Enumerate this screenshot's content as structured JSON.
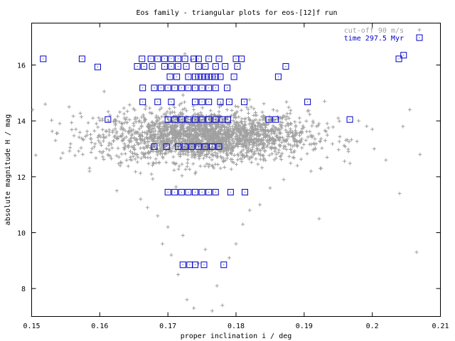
{
  "chart_data": {
    "type": "scatter",
    "title": "Eos family - triangular plots for eos-[12]f run",
    "xlabel": "proper inclination i / deg",
    "ylabel": "absolute magnitude H / mag",
    "xlim": [
      0.15,
      0.21
    ],
    "ylim": [
      7,
      17.5
    ],
    "x_ticks": [
      "0.15",
      "0.16",
      "0.17",
      "0.18",
      "0.19",
      "0.2",
      "0.21"
    ],
    "y_ticks": [
      "8",
      "10",
      "12",
      "14",
      "16"
    ],
    "grid": false,
    "legend_position": "top-right",
    "colors": {
      "cutoff": "#a0a0a0",
      "time": "#0000c8"
    },
    "series": [
      {
        "name": "cut-off 90 m/s",
        "marker": "plus",
        "cloud": {
          "count": 2200,
          "center_x": 0.1755,
          "sigma_x": 0.0075,
          "center_y": 13.45,
          "sigma_y": 0.45
        },
        "points": [
          {
            "x": 0.1535,
            "y": 13.3
          },
          {
            "x": 0.1555,
            "y": 14.5
          },
          {
            "x": 0.1565,
            "y": 13.7
          },
          {
            "x": 0.1575,
            "y": 12.8
          },
          {
            "x": 0.1585,
            "y": 12.2
          },
          {
            "x": 0.159,
            "y": 14.1
          },
          {
            "x": 0.1595,
            "y": 13.9
          },
          {
            "x": 0.16,
            "y": 12.9
          },
          {
            "x": 0.1615,
            "y": 14.2
          },
          {
            "x": 0.1625,
            "y": 11.5
          },
          {
            "x": 0.163,
            "y": 12.4
          },
          {
            "x": 0.1645,
            "y": 12.7
          },
          {
            "x": 0.166,
            "y": 11.2
          },
          {
            "x": 0.167,
            "y": 10.9
          },
          {
            "x": 0.1685,
            "y": 10.6
          },
          {
            "x": 0.1692,
            "y": 9.6
          },
          {
            "x": 0.17,
            "y": 10.2
          },
          {
            "x": 0.1705,
            "y": 9.2
          },
          {
            "x": 0.1715,
            "y": 8.5
          },
          {
            "x": 0.1722,
            "y": 9.9
          },
          {
            "x": 0.1728,
            "y": 7.6
          },
          {
            "x": 0.1738,
            "y": 7.3
          },
          {
            "x": 0.1745,
            "y": 8.9
          },
          {
            "x": 0.1755,
            "y": 9.4
          },
          {
            "x": 0.1765,
            "y": 7.2
          },
          {
            "x": 0.1772,
            "y": 8.1
          },
          {
            "x": 0.178,
            "y": 7.4
          },
          {
            "x": 0.179,
            "y": 9.1
          },
          {
            "x": 0.18,
            "y": 9.6
          },
          {
            "x": 0.181,
            "y": 10.3
          },
          {
            "x": 0.182,
            "y": 10.8
          },
          {
            "x": 0.1835,
            "y": 11.0
          },
          {
            "x": 0.185,
            "y": 11.6
          },
          {
            "x": 0.187,
            "y": 11.9
          },
          {
            "x": 0.189,
            "y": 12.4
          },
          {
            "x": 0.191,
            "y": 12.2
          },
          {
            "x": 0.1922,
            "y": 10.5
          },
          {
            "x": 0.193,
            "y": 14.7
          },
          {
            "x": 0.195,
            "y": 14.1
          },
          {
            "x": 0.1965,
            "y": 12.9
          },
          {
            "x": 0.198,
            "y": 14.0
          },
          {
            "x": 0.2,
            "y": 13.7
          },
          {
            "x": 0.202,
            "y": 12.6
          },
          {
            "x": 0.204,
            "y": 11.4
          },
          {
            "x": 0.2055,
            "y": 14.4
          },
          {
            "x": 0.2065,
            "y": 9.3
          },
          {
            "x": 0.207,
            "y": 12.8
          },
          {
            "x": 0.1725,
            "y": 16.4
          },
          {
            "x": 0.1735,
            "y": 16.2
          },
          {
            "x": 0.152,
            "y": 14.6
          },
          {
            "x": 0.2045,
            "y": 13.8
          }
        ]
      },
      {
        "name": "time 297.5 Myr",
        "marker": "square",
        "points": [
          {
            "x": 0.1517,
            "y": 16.22
          },
          {
            "x": 0.1574,
            "y": 16.22
          },
          {
            "x": 0.1597,
            "y": 15.93
          },
          {
            "x": 0.1662,
            "y": 16.22
          },
          {
            "x": 0.1675,
            "y": 16.22
          },
          {
            "x": 0.1685,
            "y": 16.22
          },
          {
            "x": 0.1695,
            "y": 16.22
          },
          {
            "x": 0.1705,
            "y": 16.22
          },
          {
            "x": 0.1715,
            "y": 16.22
          },
          {
            "x": 0.1725,
            "y": 16.22
          },
          {
            "x": 0.1738,
            "y": 16.22
          },
          {
            "x": 0.1745,
            "y": 16.22
          },
          {
            "x": 0.176,
            "y": 16.22
          },
          {
            "x": 0.1775,
            "y": 16.22
          },
          {
            "x": 0.18,
            "y": 16.22
          },
          {
            "x": 0.1808,
            "y": 16.22
          },
          {
            "x": 0.2039,
            "y": 16.22
          },
          {
            "x": 0.1655,
            "y": 15.95
          },
          {
            "x": 0.1665,
            "y": 15.95
          },
          {
            "x": 0.1677,
            "y": 15.95
          },
          {
            "x": 0.1695,
            "y": 15.95
          },
          {
            "x": 0.1705,
            "y": 15.95
          },
          {
            "x": 0.1715,
            "y": 15.95
          },
          {
            "x": 0.1727,
            "y": 15.95
          },
          {
            "x": 0.1745,
            "y": 15.95
          },
          {
            "x": 0.1755,
            "y": 15.95
          },
          {
            "x": 0.177,
            "y": 15.95
          },
          {
            "x": 0.1784,
            "y": 15.95
          },
          {
            "x": 0.1802,
            "y": 15.95
          },
          {
            "x": 0.1873,
            "y": 15.95
          },
          {
            "x": 0.1703,
            "y": 15.58
          },
          {
            "x": 0.1713,
            "y": 15.58
          },
          {
            "x": 0.173,
            "y": 15.58
          },
          {
            "x": 0.174,
            "y": 15.58
          },
          {
            "x": 0.1745,
            "y": 15.58
          },
          {
            "x": 0.175,
            "y": 15.58
          },
          {
            "x": 0.1755,
            "y": 15.58
          },
          {
            "x": 0.176,
            "y": 15.58
          },
          {
            "x": 0.1765,
            "y": 15.58
          },
          {
            "x": 0.177,
            "y": 15.58
          },
          {
            "x": 0.1777,
            "y": 15.58
          },
          {
            "x": 0.1797,
            "y": 15.58
          },
          {
            "x": 0.1862,
            "y": 15.58
          },
          {
            "x": 0.1663,
            "y": 15.18
          },
          {
            "x": 0.168,
            "y": 15.18
          },
          {
            "x": 0.169,
            "y": 15.18
          },
          {
            "x": 0.17,
            "y": 15.18
          },
          {
            "x": 0.171,
            "y": 15.18
          },
          {
            "x": 0.172,
            "y": 15.18
          },
          {
            "x": 0.173,
            "y": 15.18
          },
          {
            "x": 0.174,
            "y": 15.18
          },
          {
            "x": 0.175,
            "y": 15.18
          },
          {
            "x": 0.176,
            "y": 15.18
          },
          {
            "x": 0.177,
            "y": 15.18
          },
          {
            "x": 0.1787,
            "y": 15.18
          },
          {
            "x": 0.1663,
            "y": 14.68
          },
          {
            "x": 0.1685,
            "y": 14.68
          },
          {
            "x": 0.1705,
            "y": 14.68
          },
          {
            "x": 0.174,
            "y": 14.68
          },
          {
            "x": 0.175,
            "y": 14.68
          },
          {
            "x": 0.176,
            "y": 14.68
          },
          {
            "x": 0.1777,
            "y": 14.68
          },
          {
            "x": 0.179,
            "y": 14.68
          },
          {
            "x": 0.1812,
            "y": 14.68
          },
          {
            "x": 0.1905,
            "y": 14.68
          },
          {
            "x": 0.1612,
            "y": 14.05
          },
          {
            "x": 0.17,
            "y": 14.05
          },
          {
            "x": 0.171,
            "y": 14.05
          },
          {
            "x": 0.172,
            "y": 14.05
          },
          {
            "x": 0.173,
            "y": 14.05
          },
          {
            "x": 0.174,
            "y": 14.05
          },
          {
            "x": 0.175,
            "y": 14.05
          },
          {
            "x": 0.176,
            "y": 14.05
          },
          {
            "x": 0.177,
            "y": 14.05
          },
          {
            "x": 0.178,
            "y": 14.05
          },
          {
            "x": 0.1788,
            "y": 14.05
          },
          {
            "x": 0.1848,
            "y": 14.05
          },
          {
            "x": 0.1858,
            "y": 14.05
          },
          {
            "x": 0.1967,
            "y": 14.05
          },
          {
            "x": 0.168,
            "y": 13.08
          },
          {
            "x": 0.1698,
            "y": 13.08
          },
          {
            "x": 0.1715,
            "y": 13.08
          },
          {
            "x": 0.1725,
            "y": 13.08
          },
          {
            "x": 0.1735,
            "y": 13.08
          },
          {
            "x": 0.1745,
            "y": 13.08
          },
          {
            "x": 0.1755,
            "y": 13.08
          },
          {
            "x": 0.1765,
            "y": 13.08
          },
          {
            "x": 0.1775,
            "y": 13.08
          },
          {
            "x": 0.17,
            "y": 11.45
          },
          {
            "x": 0.171,
            "y": 11.45
          },
          {
            "x": 0.172,
            "y": 11.45
          },
          {
            "x": 0.173,
            "y": 11.45
          },
          {
            "x": 0.174,
            "y": 11.45
          },
          {
            "x": 0.175,
            "y": 11.45
          },
          {
            "x": 0.176,
            "y": 11.45
          },
          {
            "x": 0.177,
            "y": 11.45
          },
          {
            "x": 0.1792,
            "y": 11.45
          },
          {
            "x": 0.1813,
            "y": 11.45
          },
          {
            "x": 0.1722,
            "y": 8.85
          },
          {
            "x": 0.1732,
            "y": 8.85
          },
          {
            "x": 0.174,
            "y": 8.85
          },
          {
            "x": 0.1753,
            "y": 8.85
          },
          {
            "x": 0.1782,
            "y": 8.85
          },
          {
            "x": 0.2046,
            "y": 16.35
          }
        ]
      }
    ]
  }
}
